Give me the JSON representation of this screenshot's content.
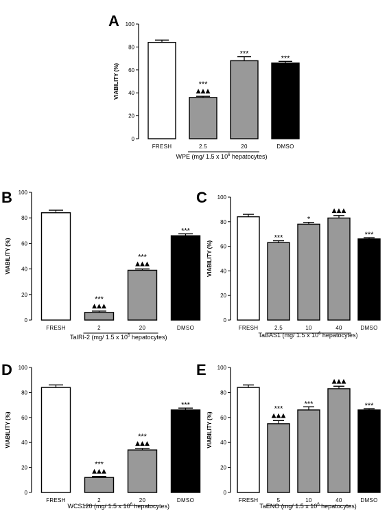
{
  "chart_data": [
    {
      "type": "bar",
      "panel": "A",
      "categories": [
        "FRESH",
        "2.5",
        "20",
        "DMSO"
      ],
      "values": [
        84,
        36,
        68,
        66
      ],
      "errors": [
        2,
        1,
        3.5,
        1.5
      ],
      "colors": [
        "#ffffff",
        "#999999",
        "#999999",
        "#000000"
      ],
      "stars": [
        "",
        "***",
        "***",
        "***"
      ],
      "triangles": [
        "",
        "▲▲▲",
        "",
        ""
      ],
      "ylabel": "VIABILITY (%)",
      "xlabel_prefix": "WPE  (mg/ 1.5 x 10",
      "xlabel_exp": "6",
      "xlabel_suffix": " hepatocytes)",
      "ylim": [
        0,
        100
      ],
      "yticks": [
        "0",
        "20",
        "40",
        "60",
        "80",
        "100"
      ]
    },
    {
      "type": "bar",
      "panel": "B",
      "categories": [
        "FRESH",
        "2",
        "20",
        "DMSO"
      ],
      "values": [
        84,
        6,
        39,
        66
      ],
      "errors": [
        2,
        1,
        1,
        1.5
      ],
      "colors": [
        "#ffffff",
        "#999999",
        "#999999",
        "#000000"
      ],
      "stars": [
        "",
        "***",
        "***",
        "***"
      ],
      "triangles": [
        "",
        "▲▲▲",
        "▲▲▲",
        ""
      ],
      "ylabel": "VIABILITY (%)",
      "xlabel_prefix": "TaIRI-2  (mg/ 1.5 x 10",
      "xlabel_exp": "6",
      "xlabel_suffix": " hepatocytes)",
      "ylim": [
        0,
        100
      ],
      "yticks": [
        "0",
        "20",
        "40",
        "60",
        "80",
        "100"
      ]
    },
    {
      "type": "bar",
      "panel": "C",
      "categories": [
        "FRESH",
        "2.5",
        "10",
        "40",
        "DMSO"
      ],
      "values": [
        84,
        63,
        78,
        83,
        66
      ],
      "errors": [
        2,
        1.5,
        1.5,
        2,
        1
      ],
      "colors": [
        "#ffffff",
        "#999999",
        "#999999",
        "#999999",
        "#000000"
      ],
      "stars": [
        "",
        "***",
        "*",
        "",
        "***"
      ],
      "triangles": [
        "",
        "",
        "",
        "▲▲▲",
        ""
      ],
      "ylabel": "VIABILITY (%)",
      "xlabel_prefix": "TaBAS1  (mg/ 1.5 x 10",
      "xlabel_exp": "6",
      "xlabel_suffix": " hepatocytes)",
      "ylim": [
        0,
        100
      ],
      "yticks": [
        "0",
        "20",
        "40",
        "60",
        "80",
        "100"
      ]
    },
    {
      "type": "bar",
      "panel": "D",
      "categories": [
        "FRESH",
        "2",
        "20",
        "DMSO"
      ],
      "values": [
        84,
        12,
        34,
        66
      ],
      "errors": [
        2,
        0.8,
        1.2,
        1.5
      ],
      "colors": [
        "#ffffff",
        "#999999",
        "#999999",
        "#000000"
      ],
      "stars": [
        "",
        "***",
        "***",
        "***"
      ],
      "triangles": [
        "",
        "▲▲▲",
        "▲▲▲",
        ""
      ],
      "ylabel": "VIABILITY (%)",
      "xlabel_prefix": "WCS120  (mg/ 1.5 x 10",
      "xlabel_exp": "6",
      "xlabel_suffix": " hepatocytes)",
      "ylim": [
        0,
        100
      ],
      "yticks": [
        "0",
        "20",
        "40",
        "60",
        "80",
        "100"
      ]
    },
    {
      "type": "bar",
      "panel": "E",
      "categories": [
        "FRESH",
        "5",
        "10",
        "40",
        "DMSO"
      ],
      "values": [
        84,
        55,
        66,
        83,
        66
      ],
      "errors": [
        2,
        2.5,
        2.5,
        2,
        1
      ],
      "colors": [
        "#ffffff",
        "#999999",
        "#999999",
        "#999999",
        "#000000"
      ],
      "stars": [
        "",
        "***",
        "***",
        "",
        "***"
      ],
      "triangles": [
        "",
        "▲▲▲",
        "",
        "▲▲▲",
        ""
      ],
      "ylabel": "VIABILITY (%)",
      "xlabel_prefix": "TaENO  (mg/ 1.5 x 10",
      "xlabel_exp": "6",
      "xlabel_suffix": " hepatocytes)",
      "ylim": [
        0,
        100
      ],
      "yticks": [
        "0",
        "20",
        "40",
        "60",
        "80",
        "100"
      ]
    }
  ]
}
